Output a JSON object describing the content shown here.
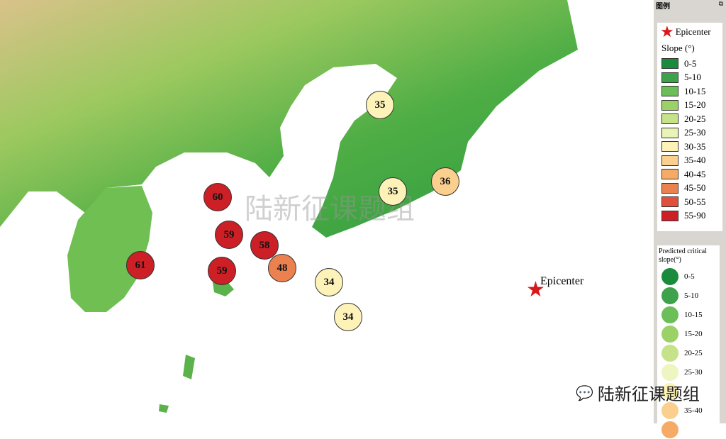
{
  "legend": {
    "panel_title": "图例",
    "epicenter_label": "Epicenter",
    "slope_title": "Slope (°)",
    "slope_classes": [
      {
        "label": "0-5",
        "color": "#1a8a3c"
      },
      {
        "label": "5-10",
        "color": "#3ea24c"
      },
      {
        "label": "10-15",
        "color": "#6cbf58"
      },
      {
        "label": "15-20",
        "color": "#9bd167"
      },
      {
        "label": "20-25",
        "color": "#c6e38a"
      },
      {
        "label": "25-30",
        "color": "#e8f3b5"
      },
      {
        "label": "30-35",
        "color": "#fdf2b8"
      },
      {
        "label": "35-40",
        "color": "#fbcf8d"
      },
      {
        "label": "40-45",
        "color": "#f5ab66"
      },
      {
        "label": "45-50",
        "color": "#ec8150"
      },
      {
        "label": "50-55",
        "color": "#e0503c"
      },
      {
        "label": "55-90",
        "color": "#cc1f26"
      }
    ],
    "critical_title": "Predicted critical slope(°)",
    "critical_classes": [
      {
        "label": "0-5",
        "color": "#1a8a3c"
      },
      {
        "label": "5-10",
        "color": "#3ea24c"
      },
      {
        "label": "10-15",
        "color": "#6cbf58"
      },
      {
        "label": "15-20",
        "color": "#9bd167"
      },
      {
        "label": "20-25",
        "color": "#c6e38a"
      },
      {
        "label": "25-30",
        "color": "#eef5c0"
      },
      {
        "label": "",
        "color": "#fdf2b8"
      },
      {
        "label": "35-40",
        "color": "#fbcf8d"
      },
      {
        "label": "",
        "color": "#f5ab66"
      }
    ]
  },
  "map": {
    "epicenter_label": "Epicenter",
    "epicenter_color": "#d7191c",
    "sites": [
      {
        "value": "35",
        "color": "#fdf2b8"
      },
      {
        "value": "35",
        "color": "#fdf2b8"
      },
      {
        "value": "36",
        "color": "#fbcf8d"
      },
      {
        "value": "60",
        "color": "#cc1f26"
      },
      {
        "value": "59",
        "color": "#cc1f26"
      },
      {
        "value": "58",
        "color": "#cc1f26"
      },
      {
        "value": "48",
        "color": "#ec8150"
      },
      {
        "value": "61",
        "color": "#cc1f26"
      },
      {
        "value": "59",
        "color": "#cc1f26"
      },
      {
        "value": "34",
        "color": "#fdf2b8"
      },
      {
        "value": "34",
        "color": "#fdf2b8"
      }
    ]
  },
  "watermark": "陆新征课题组",
  "wechat_label": "陆新征课题组"
}
